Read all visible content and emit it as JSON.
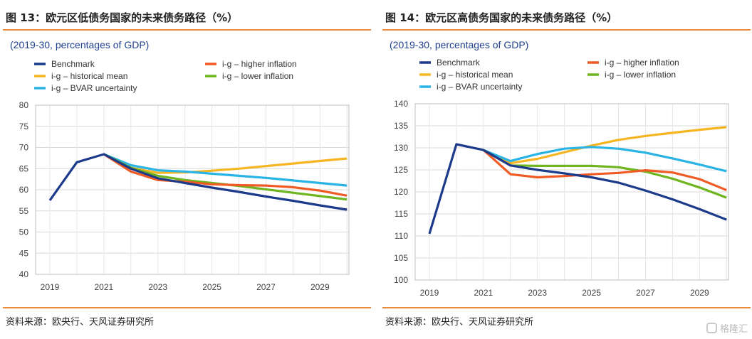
{
  "colors": {
    "Benchmark": "#1b3a8a",
    "i-g – historical mean": "#f7b522",
    "i-g – BVAR uncertainty": "#2ab4e6",
    "i-g – higher inflation": "#f05a24",
    "i-g – lower inflation": "#6fb51f",
    "rule": "#e98d3c",
    "subtitle": "#1f3f8f"
  },
  "left_panel": {
    "title": "图 13：欧元区低债务国家的未来债务路径（%）",
    "subtitle": "(2019-30, percentages of GDP)",
    "source": "资料来源：欧央行、天风证券研究所"
  },
  "right_panel": {
    "title": "图 14：欧元区高债务国家的未来债务路径（%）",
    "subtitle": "(2019-30, percentages of GDP)",
    "source": "资料来源：欧央行、天风证券研究所",
    "watermark": "格隆汇"
  },
  "chart_data": [
    {
      "type": "line",
      "legend": [
        "Benchmark",
        "i-g – higher inflation",
        "i-g – historical mean",
        "i-g – lower inflation",
        "i-g – BVAR uncertainty"
      ],
      "x": [
        2019,
        2020,
        2021,
        2022,
        2023,
        2024,
        2025,
        2026,
        2027,
        2028,
        2029,
        2030
      ],
      "xticks": [
        2019,
        2021,
        2023,
        2025,
        2027,
        2029
      ],
      "ylim": [
        40,
        80
      ],
      "yticks": [
        40,
        45,
        50,
        55,
        60,
        65,
        70,
        75,
        80
      ],
      "series": [
        {
          "name": "i-g – historical mean",
          "values": [
            null,
            null,
            68.4,
            65.2,
            64.0,
            64.1,
            64.5,
            65.0,
            65.6,
            66.2,
            66.8,
            67.4
          ]
        },
        {
          "name": "i-g – BVAR uncertainty",
          "values": [
            null,
            null,
            68.4,
            65.8,
            64.6,
            64.3,
            63.8,
            63.3,
            62.8,
            62.2,
            61.6,
            61.0
          ]
        },
        {
          "name": "i-g – lower inflation",
          "values": [
            null,
            null,
            68.4,
            65.2,
            63.3,
            62.3,
            61.6,
            60.9,
            60.1,
            59.3,
            58.5,
            57.7
          ]
        },
        {
          "name": "i-g – higher inflation",
          "values": [
            null,
            null,
            68.4,
            64.3,
            62.3,
            61.9,
            61.3,
            61.1,
            61.0,
            60.6,
            59.8,
            58.6
          ]
        },
        {
          "name": "Benchmark",
          "values": [
            57.5,
            66.5,
            68.4,
            65.0,
            62.7,
            61.6,
            60.5,
            59.5,
            58.4,
            57.4,
            56.3,
            55.3
          ]
        }
      ]
    },
    {
      "type": "line",
      "legend": [
        "Benchmark",
        "i-g – higher inflation",
        "i-g – historical mean",
        "i-g – lower inflation",
        "i-g – BVAR uncertainty"
      ],
      "x": [
        2019,
        2020,
        2021,
        2022,
        2023,
        2024,
        2025,
        2026,
        2027,
        2028,
        2029,
        2030
      ],
      "xticks": [
        2019,
        2021,
        2023,
        2025,
        2027,
        2029
      ],
      "ylim": [
        100,
        140
      ],
      "yticks": [
        100,
        105,
        110,
        115,
        120,
        125,
        130,
        135,
        140
      ],
      "series": [
        {
          "name": "i-g – historical mean",
          "values": [
            null,
            null,
            129.5,
            126.5,
            127.5,
            129.0,
            130.5,
            131.8,
            132.7,
            133.4,
            134.1,
            134.7
          ]
        },
        {
          "name": "i-g – BVAR uncertainty",
          "values": [
            null,
            null,
            129.5,
            127.0,
            128.6,
            129.8,
            130.2,
            129.8,
            128.9,
            127.6,
            126.2,
            124.7
          ]
        },
        {
          "name": "i-g – lower inflation",
          "values": [
            null,
            null,
            129.5,
            126.0,
            125.9,
            125.9,
            125.9,
            125.6,
            124.6,
            123.0,
            121.0,
            118.7
          ]
        },
        {
          "name": "i-g – higher inflation",
          "values": [
            null,
            null,
            129.5,
            124.0,
            123.3,
            123.6,
            124.0,
            124.3,
            124.9,
            124.4,
            122.9,
            120.4
          ]
        },
        {
          "name": "Benchmark",
          "values": [
            110.5,
            130.8,
            129.5,
            126.0,
            125.0,
            124.2,
            123.3,
            122.1,
            120.3,
            118.3,
            116.1,
            113.7
          ]
        }
      ]
    }
  ]
}
